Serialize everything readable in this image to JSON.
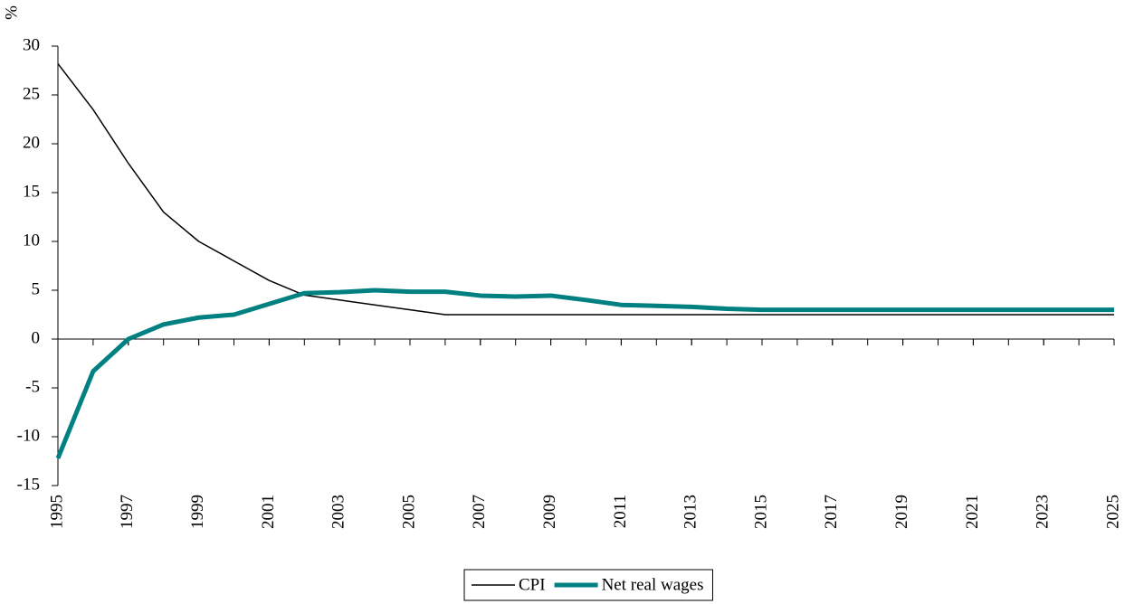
{
  "chart_data": {
    "type": "line",
    "y_label": "%",
    "x": [
      1995,
      1996,
      1997,
      1998,
      1999,
      2000,
      2001,
      2002,
      2003,
      2004,
      2005,
      2006,
      2007,
      2008,
      2009,
      2010,
      2011,
      2012,
      2013,
      2014,
      2015,
      2016,
      2017,
      2018,
      2019,
      2020,
      2021,
      2022,
      2023,
      2024,
      2025
    ],
    "series": [
      {
        "name": "CPI",
        "color": "#000000",
        "values": [
          28.2,
          23.5,
          18,
          13,
          10,
          8,
          6,
          4.5,
          4,
          3.5,
          3,
          2.5,
          2.5,
          2.5,
          2.5,
          2.5,
          2.5,
          2.5,
          2.5,
          2.5,
          2.5,
          2.5,
          2.5,
          2.5,
          2.5,
          2.5,
          2.5,
          2.5,
          2.5,
          2.5,
          2.5
        ]
      },
      {
        "name": "Net real wages",
        "color": "#008080",
        "values": [
          -12.2,
          -3.3,
          0,
          1.5,
          2.2,
          2.5,
          3.6,
          4.7,
          4.8,
          5,
          4.85,
          4.85,
          4.45,
          4.35,
          4.45,
          4,
          3.5,
          3.4,
          3.3,
          3.1,
          3,
          3,
          3,
          3,
          3,
          3,
          3,
          3,
          3,
          3,
          3
        ]
      }
    ],
    "xlim": [
      1995,
      2025
    ],
    "xticks": [
      1995,
      1997,
      1999,
      2001,
      2003,
      2005,
      2007,
      2009,
      2011,
      2013,
      2015,
      2017,
      2019,
      2021,
      2023,
      2025
    ],
    "ylim": [
      -15,
      30
    ],
    "yticks": [
      -15,
      -10,
      -5,
      0,
      5,
      10,
      15,
      20,
      25,
      30
    ],
    "legend": "bottom"
  }
}
